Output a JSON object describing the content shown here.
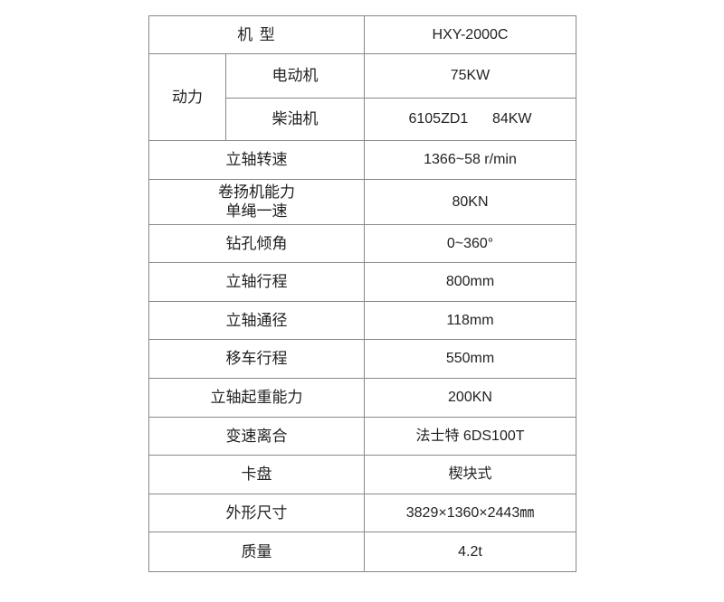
{
  "header": {
    "label": "机 型",
    "value": "HXY-2000C"
  },
  "power": {
    "label": "动力",
    "sub": [
      {
        "label": "电动机",
        "value": "75KW"
      },
      {
        "label": "柴油机",
        "value": "6105ZD1      84KW"
      }
    ]
  },
  "rows": [
    {
      "label": "立轴转速",
      "value": "1366~58 r/min"
    },
    {
      "label": "卷扬机能力",
      "label2": "单绳一速",
      "value": "80KN"
    },
    {
      "label": "钻孔倾角",
      "value": "0~360°"
    },
    {
      "label": "立轴行程",
      "value": "800mm"
    },
    {
      "label": "立轴通径",
      "value": "118mm"
    },
    {
      "label": "移车行程",
      "value": "550mm"
    },
    {
      "label": "立轴起重能力",
      "value": "200KN"
    },
    {
      "label": "变速离合",
      "value": "法士特 6DS100T"
    },
    {
      "label": "卡盘",
      "value": "楔块式"
    },
    {
      "label": "外形尺寸",
      "value": "3829×1360×2443㎜"
    },
    {
      "label": "质量",
      "value": "4.2t"
    }
  ]
}
